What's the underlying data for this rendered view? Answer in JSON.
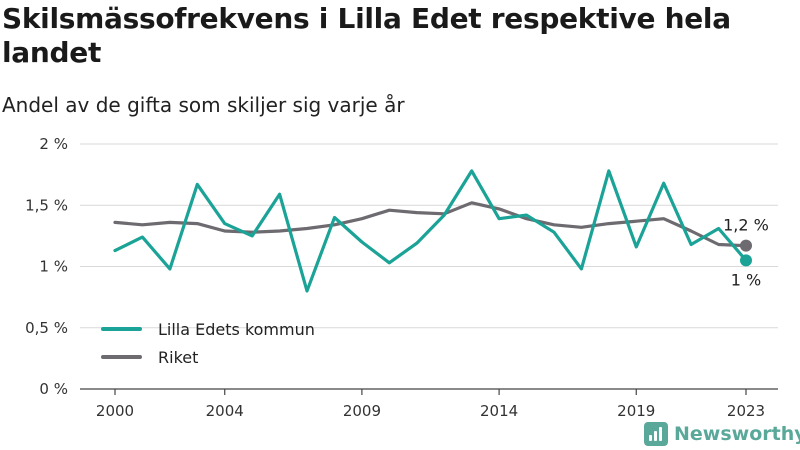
{
  "header": {
    "title": "Skilsmässofrekvens i Lilla Edet respektive hela landet",
    "subtitle": "Andel av de gifta som skiljer sig varje år"
  },
  "branding": {
    "text": "Newsworthy",
    "icon": "bar-chart-logo-icon",
    "color": "#5aa89a"
  },
  "chart_data": {
    "type": "line",
    "title": "Skilsmässofrekvens i Lilla Edet respektive hela landet",
    "subtitle": "Andel av de gifta som skiljer sig varje år",
    "xlabel": "",
    "ylabel": "",
    "x": [
      2000,
      2001,
      2002,
      2003,
      2004,
      2005,
      2006,
      2007,
      2008,
      2009,
      2010,
      2011,
      2012,
      2013,
      2014,
      2015,
      2016,
      2017,
      2018,
      2019,
      2020,
      2021,
      2022,
      2023
    ],
    "x_ticks": [
      2000,
      2004,
      2009,
      2014,
      2019,
      2023
    ],
    "x_tick_labels": [
      "2000",
      "2004",
      "2009",
      "2014",
      "2019",
      "2023"
    ],
    "ylim": [
      0,
      2
    ],
    "y_ticks": [
      0,
      0.5,
      1,
      1.5,
      2
    ],
    "y_tick_labels": [
      "0 %",
      "0,5 %",
      "1 %",
      "1,5 %",
      "2 %"
    ],
    "grid": "horizontal",
    "legend_position": "bottom-left",
    "series": [
      {
        "name": "Lilla Edets kommun",
        "color": "#1aa396",
        "values": [
          1.13,
          1.24,
          0.98,
          1.67,
          1.35,
          1.25,
          1.59,
          0.8,
          1.4,
          1.2,
          1.03,
          1.19,
          1.42,
          1.78,
          1.39,
          1.42,
          1.28,
          0.98,
          1.78,
          1.16,
          1.68,
          1.18,
          1.31,
          1.05
        ],
        "end_label": "1 %"
      },
      {
        "name": "Riket",
        "color": "#6d6a70",
        "values": [
          1.36,
          1.34,
          1.36,
          1.35,
          1.29,
          1.28,
          1.29,
          1.31,
          1.34,
          1.39,
          1.46,
          1.44,
          1.43,
          1.52,
          1.47,
          1.39,
          1.34,
          1.32,
          1.35,
          1.37,
          1.39,
          1.29,
          1.18,
          1.17
        ],
        "end_label": "1,2 %"
      }
    ]
  }
}
